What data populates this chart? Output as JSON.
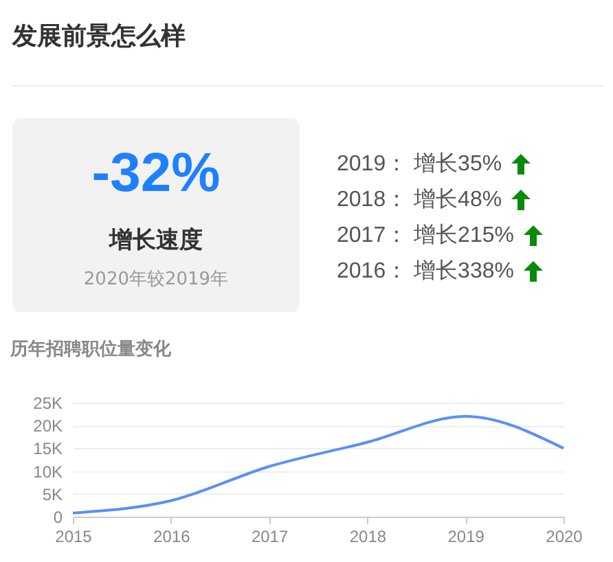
{
  "chart_data": [
    {
      "type": "other",
      "title": "发展前景怎么样",
      "annotations": [
        "-32%",
        "增长速度",
        "2020年较2019年",
        "2019： 增长35%",
        "2018： 增长48%",
        "2017： 增长215%",
        "2016： 增长338%"
      ]
    },
    {
      "type": "line",
      "title": "历年招聘职位量变化",
      "x": [
        2015,
        2016,
        2017,
        2018,
        2019,
        2020
      ],
      "series": [
        {
          "color": "#5b8ff9",
          "values": [
            800,
            3500,
            11000,
            16300,
            22000,
            15000
          ]
        }
      ],
      "xlim": [
        2015,
        2020
      ],
      "xticks": [
        2015,
        2016,
        2017,
        2018,
        2019,
        2020
      ],
      "ylim": [
        0,
        25000
      ],
      "yticks": [
        {
          "value": 0,
          "label": "0"
        },
        {
          "value": 5000,
          "label": "5K"
        },
        {
          "value": 10000,
          "label": "10K"
        },
        {
          "value": 15000,
          "label": "15K"
        },
        {
          "value": 20000,
          "label": "20K"
        },
        {
          "value": 25000,
          "label": "25K"
        }
      ],
      "grid": "y",
      "marker": "none",
      "line_style": "solid",
      "legend": false
    }
  ]
}
